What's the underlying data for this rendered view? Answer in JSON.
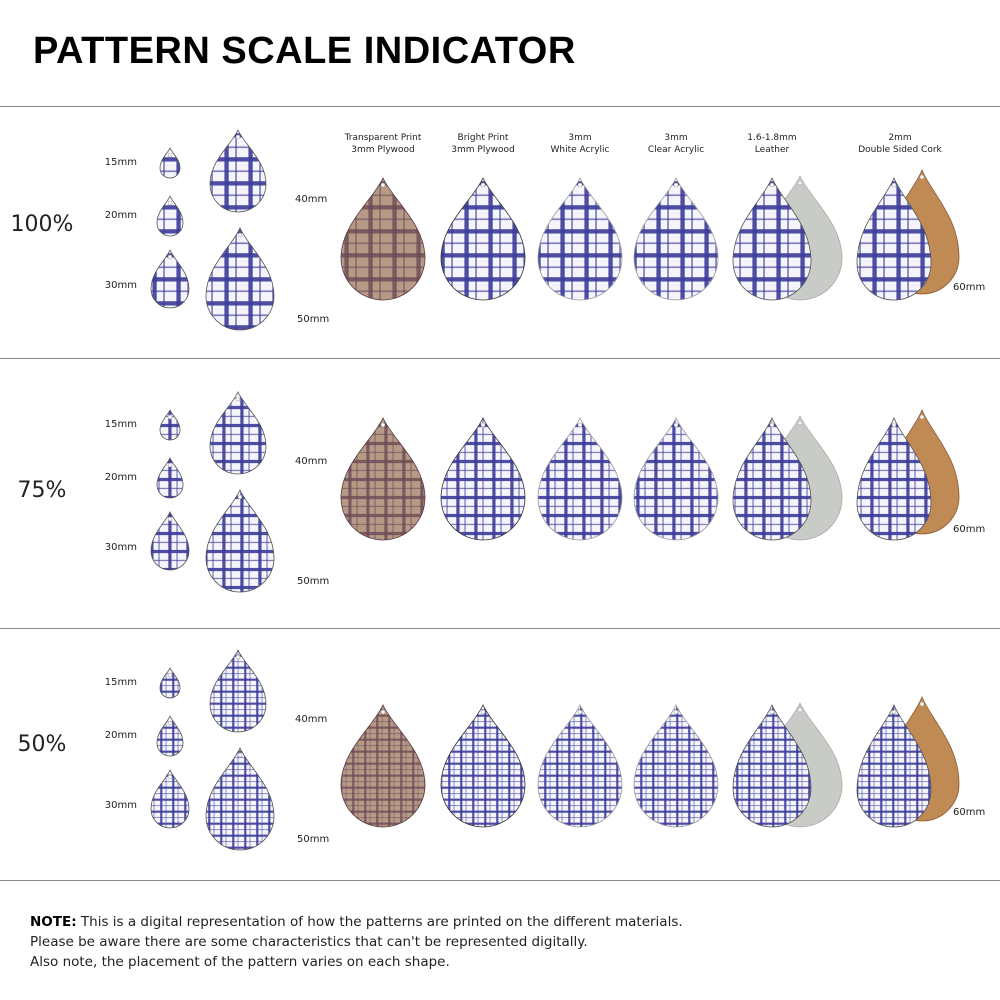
{
  "title": "PATTERN SCALE INDICATOR",
  "materials": [
    {
      "line1": "Transparent Print",
      "line2": "3mm Plywood",
      "type": "plywood"
    },
    {
      "line1": "Bright Print",
      "line2": "3mm Plywood",
      "type": "bright"
    },
    {
      "line1": "3mm",
      "line2": "White Acrylic",
      "type": "white"
    },
    {
      "line1": "3mm",
      "line2": "Clear Acrylic",
      "type": "clear"
    },
    {
      "line1": "1.6-1.8mm",
      "line2": "Leather",
      "type": "leather"
    },
    {
      "line1": "2mm",
      "line2": "Double Sided Cork",
      "type": "cork"
    }
  ],
  "sections": [
    {
      "scale": "100%",
      "sizes": [
        "15mm",
        "20mm",
        "30mm",
        "40mm",
        "50mm"
      ],
      "material_size": "60mm"
    },
    {
      "scale": "75%",
      "sizes": [
        "15mm",
        "20mm",
        "30mm",
        "40mm",
        "50mm"
      ],
      "material_size": "60mm"
    },
    {
      "scale": "50%",
      "sizes": [
        "15mm",
        "20mm",
        "30mm",
        "40mm",
        "50mm"
      ],
      "material_size": "60mm"
    }
  ],
  "colors": {
    "pattern_blue": "#3b3c99",
    "plywood": "#b69a86",
    "plywood_lines": "#6b4a55",
    "leather": "#c9cbc6",
    "cork": "#c08a55"
  },
  "note": {
    "label": "NOTE:",
    "line1": " This is a digital representation of how the patterns are printed on the different materials.",
    "line2": "Please be aware there are some characteristics that can't be represented digitally.",
    "line3": "Also note, the placement of the pattern varies on each shape."
  }
}
